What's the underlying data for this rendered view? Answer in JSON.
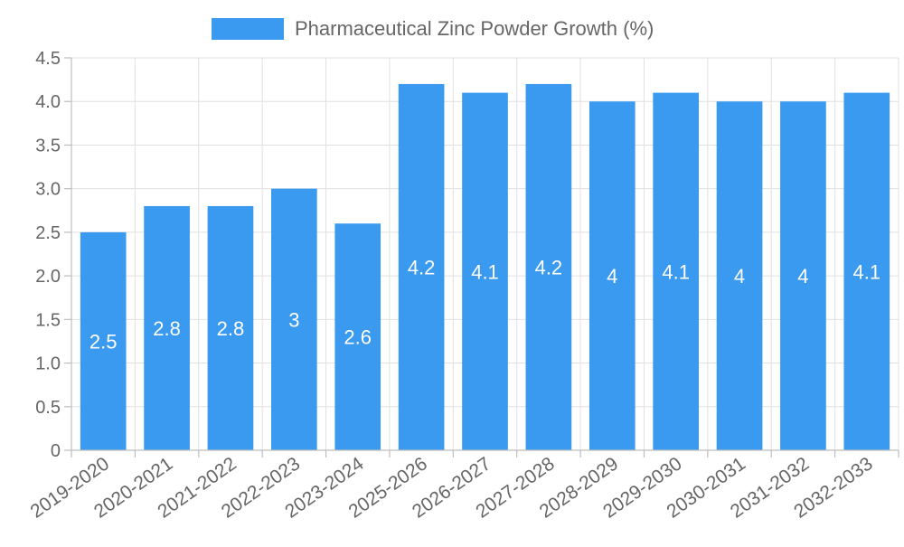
{
  "chart_data": {
    "type": "bar",
    "title": "",
    "xlabel": "",
    "ylabel": "",
    "categories": [
      "2019-2020",
      "2020-2021",
      "2021-2022",
      "2022-2023",
      "2023-2024",
      "2025-2026",
      "2026-2027",
      "2027-2028",
      "2028-2029",
      "2029-2030",
      "2030-2031",
      "2031-2032",
      "2032-2033"
    ],
    "series": [
      {
        "name": "Pharmaceutical Zinc Powder Growth (%)",
        "values": [
          2.5,
          2.8,
          2.8,
          3,
          2.6,
          4.2,
          4.1,
          4.2,
          4,
          4.1,
          4,
          4,
          4.1
        ],
        "value_labels": [
          "2.5",
          "2.8",
          "2.8",
          "3",
          "2.6",
          "4.2",
          "4.1",
          "4.2",
          "4",
          "4.1",
          "4",
          "4",
          "4.1"
        ],
        "color": "#3a9aef"
      }
    ],
    "ylim": [
      0,
      4.5
    ],
    "yticks": [
      "0",
      "0.5",
      "1.0",
      "1.5",
      "2.0",
      "2.5",
      "3.0",
      "3.5",
      "4.0",
      "4.5"
    ],
    "grid": true,
    "legend_position": "top-center"
  }
}
